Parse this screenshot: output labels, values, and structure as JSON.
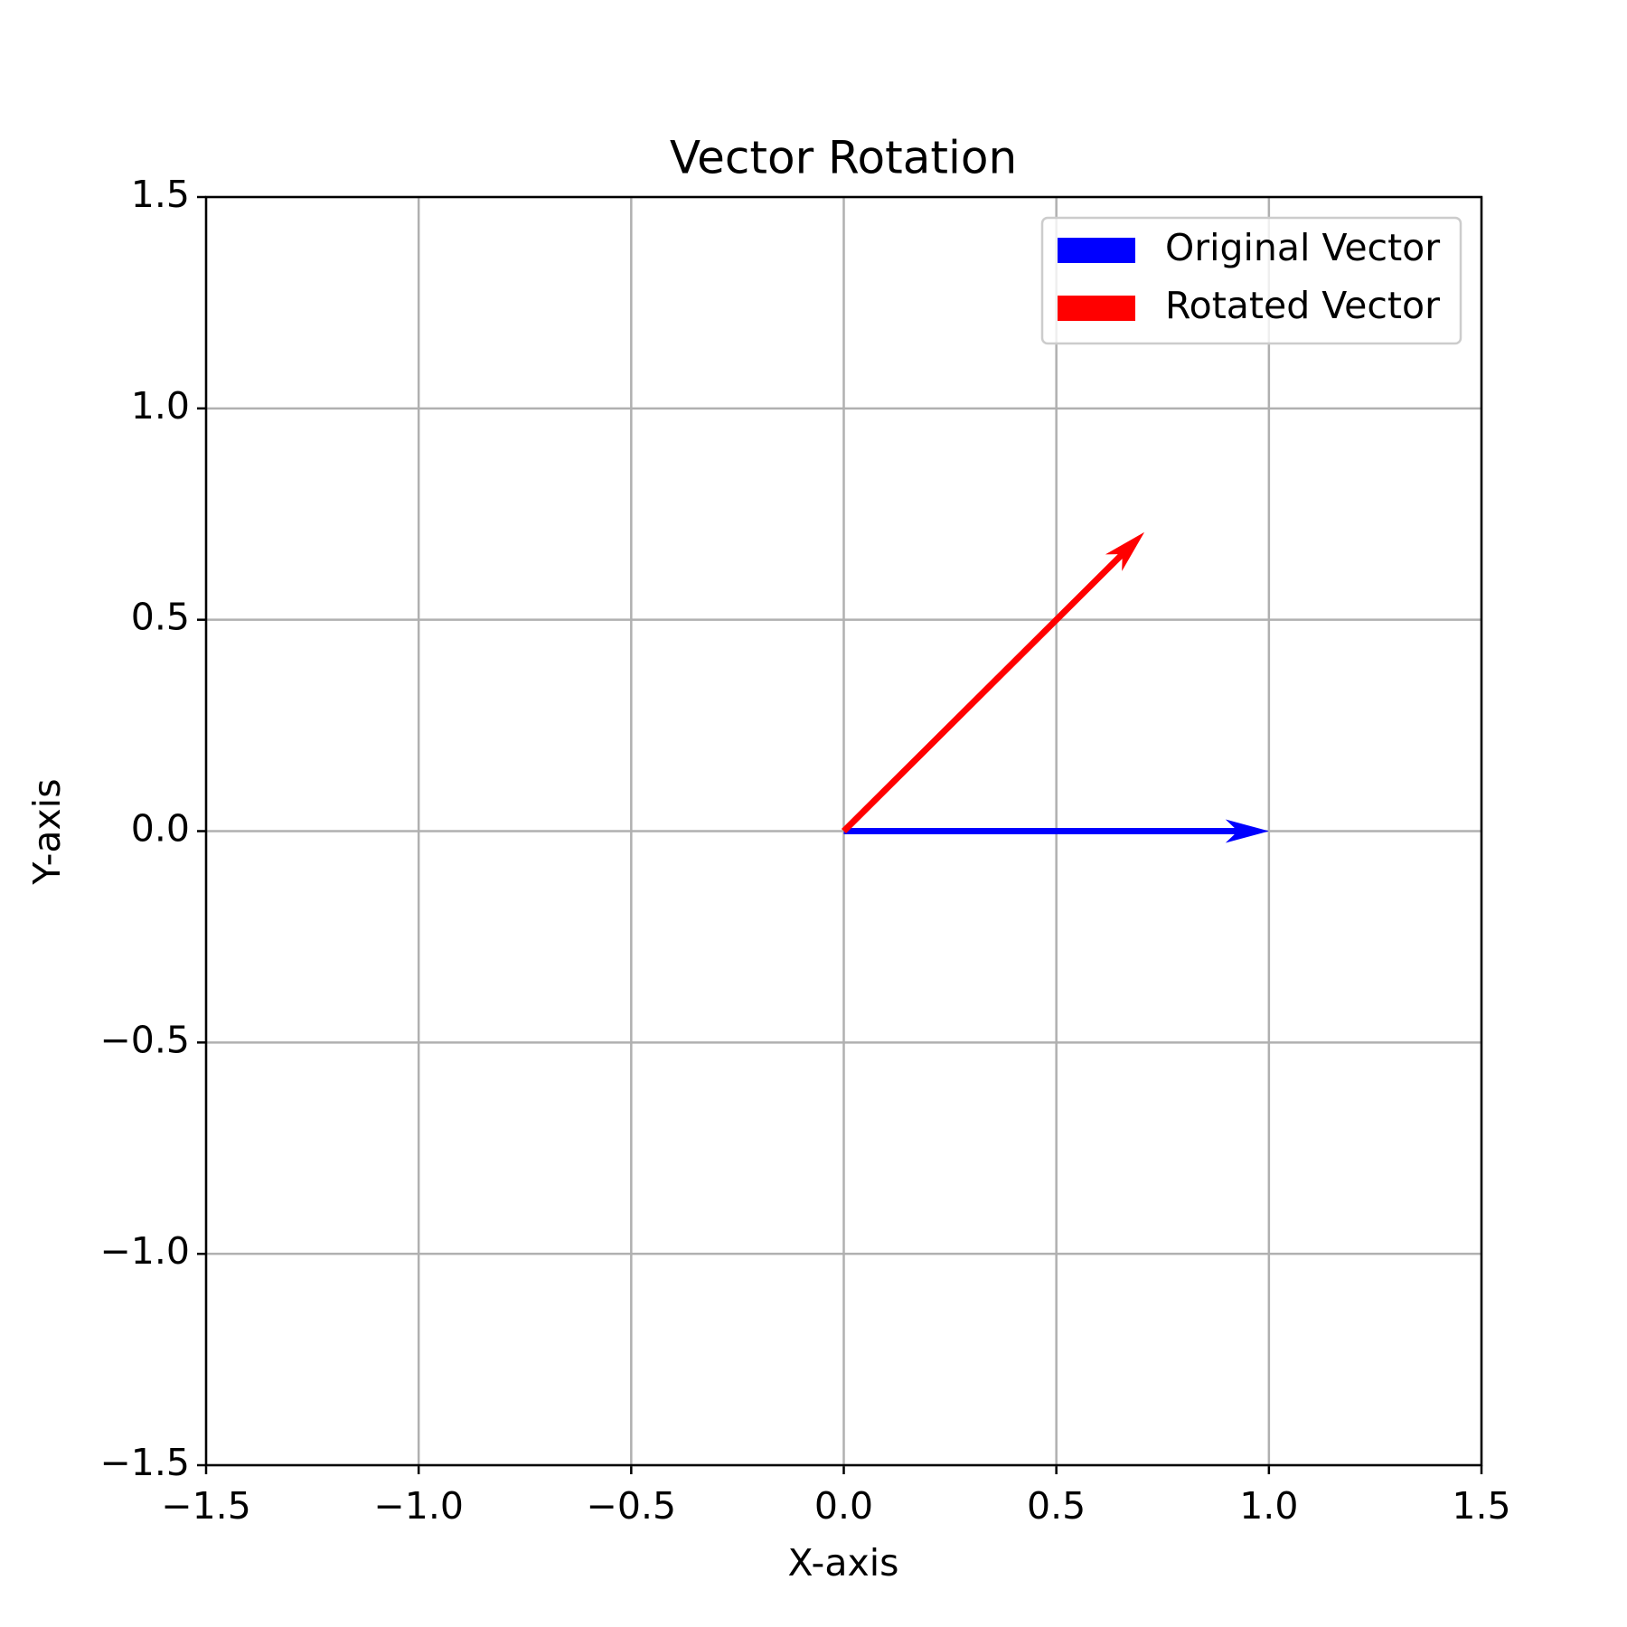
{
  "chart_data": {
    "type": "quiver",
    "title": "Vector Rotation",
    "xlabel": "X-axis",
    "ylabel": "Y-axis",
    "series": [
      {
        "name": "Original Vector",
        "color": "#0000ff",
        "x": [
          0
        ],
        "y": [
          0
        ],
        "u": [
          1
        ],
        "v": [
          0
        ]
      },
      {
        "name": "Rotated Vector",
        "color": "#ff0000",
        "x": [
          0
        ],
        "y": [
          0
        ],
        "u": [
          0.7071
        ],
        "v": [
          0.7071
        ]
      }
    ],
    "xlim": [
      -1.5,
      1.5
    ],
    "ylim": [
      -1.5,
      1.5
    ],
    "xticks": [
      {
        "value": -1.5,
        "label": "−1.5"
      },
      {
        "value": -1,
        "label": "−1.0"
      },
      {
        "value": -0.5,
        "label": "−0.5"
      },
      {
        "value": 0,
        "label": "0.0"
      },
      0.5,
      {
        "value": 1,
        "label": "1.0"
      },
      1.5
    ],
    "yticks": [
      {
        "value": -1.5,
        "label": "−1.5"
      },
      {
        "value": -1,
        "label": "−1.0"
      },
      {
        "value": -0.5,
        "label": "−0.5"
      },
      {
        "value": 0,
        "label": "0.0"
      },
      0.5,
      {
        "value": 1,
        "label": "1.0"
      },
      1.5
    ],
    "grid": true,
    "legend": "upper right"
  }
}
